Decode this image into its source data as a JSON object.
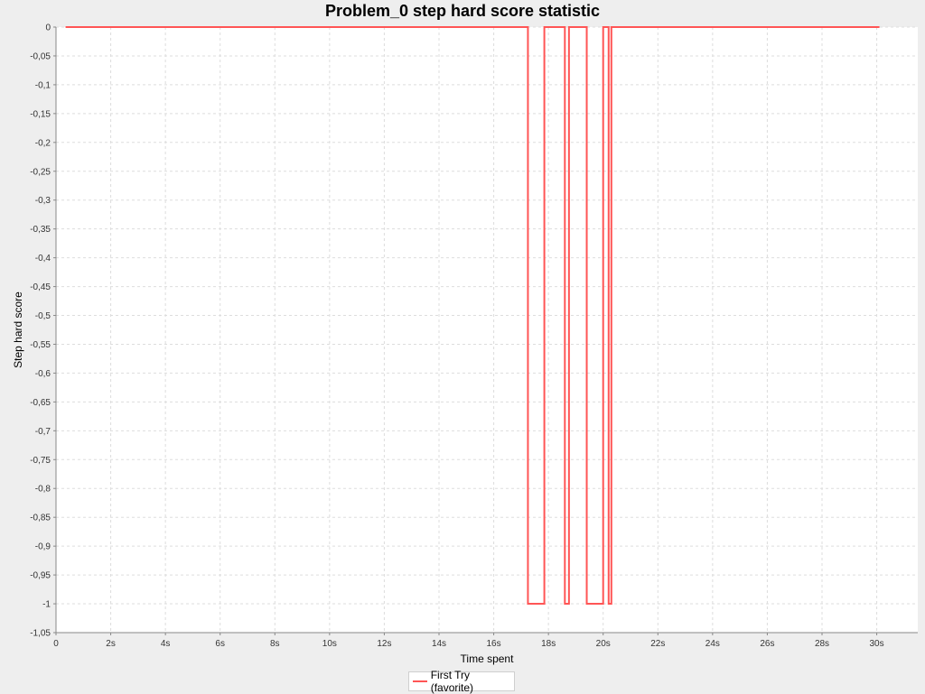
{
  "chart_data": {
    "type": "line",
    "title": "Problem_0 step hard score statistic",
    "xlabel": "Time spent",
    "ylabel": "Step hard score",
    "xlim": [
      0,
      31.5
    ],
    "ylim": [
      -1.05,
      0
    ],
    "x_ticks": [
      {
        "value": 0,
        "label": "0"
      },
      {
        "value": 2,
        "label": "2s"
      },
      {
        "value": 4,
        "label": "4s"
      },
      {
        "value": 6,
        "label": "6s"
      },
      {
        "value": 8,
        "label": "8s"
      },
      {
        "value": 10,
        "label": "10s"
      },
      {
        "value": 12,
        "label": "12s"
      },
      {
        "value": 14,
        "label": "14s"
      },
      {
        "value": 16,
        "label": "16s"
      },
      {
        "value": 18,
        "label": "18s"
      },
      {
        "value": 20,
        "label": "20s"
      },
      {
        "value": 22,
        "label": "22s"
      },
      {
        "value": 24,
        "label": "24s"
      },
      {
        "value": 26,
        "label": "26s"
      },
      {
        "value": 28,
        "label": "28s"
      },
      {
        "value": 30,
        "label": "30s"
      }
    ],
    "y_ticks": [
      {
        "value": 0,
        "label": "0"
      },
      {
        "value": -0.05,
        "label": "-0,05"
      },
      {
        "value": -0.1,
        "label": "-0,1"
      },
      {
        "value": -0.15,
        "label": "-0,15"
      },
      {
        "value": -0.2,
        "label": "-0,2"
      },
      {
        "value": -0.25,
        "label": "-0,25"
      },
      {
        "value": -0.3,
        "label": "-0,3"
      },
      {
        "value": -0.35,
        "label": "-0,35"
      },
      {
        "value": -0.4,
        "label": "-0,4"
      },
      {
        "value": -0.45,
        "label": "-0,45"
      },
      {
        "value": -0.5,
        "label": "-0,5"
      },
      {
        "value": -0.55,
        "label": "-0,55"
      },
      {
        "value": -0.6,
        "label": "-0,6"
      },
      {
        "value": -0.65,
        "label": "-0,65"
      },
      {
        "value": -0.7,
        "label": "-0,7"
      },
      {
        "value": -0.75,
        "label": "-0,75"
      },
      {
        "value": -0.8,
        "label": "-0,8"
      },
      {
        "value": -0.85,
        "label": "-0,85"
      },
      {
        "value": -0.9,
        "label": "-0,9"
      },
      {
        "value": -0.95,
        "label": "-0,95"
      },
      {
        "value": -1,
        "label": "-1"
      },
      {
        "value": -1.05,
        "label": "-1,05"
      }
    ],
    "grid": true,
    "legend_position": "bottom-center",
    "series": [
      {
        "name": "First Try (favorite)",
        "color": "#ff5555",
        "step": true,
        "points": [
          {
            "x": 0.35,
            "y": 0
          },
          {
            "x": 17.25,
            "y": -1
          },
          {
            "x": 17.85,
            "y": 0
          },
          {
            "x": 18.6,
            "y": -1
          },
          {
            "x": 18.75,
            "y": 0
          },
          {
            "x": 19.4,
            "y": -1
          },
          {
            "x": 20.0,
            "y": 0
          },
          {
            "x": 20.2,
            "y": -1
          },
          {
            "x": 20.3,
            "y": 0
          },
          {
            "x": 30.1,
            "y": 0
          }
        ]
      }
    ]
  },
  "legend": {
    "label": "First Try (favorite)"
  }
}
